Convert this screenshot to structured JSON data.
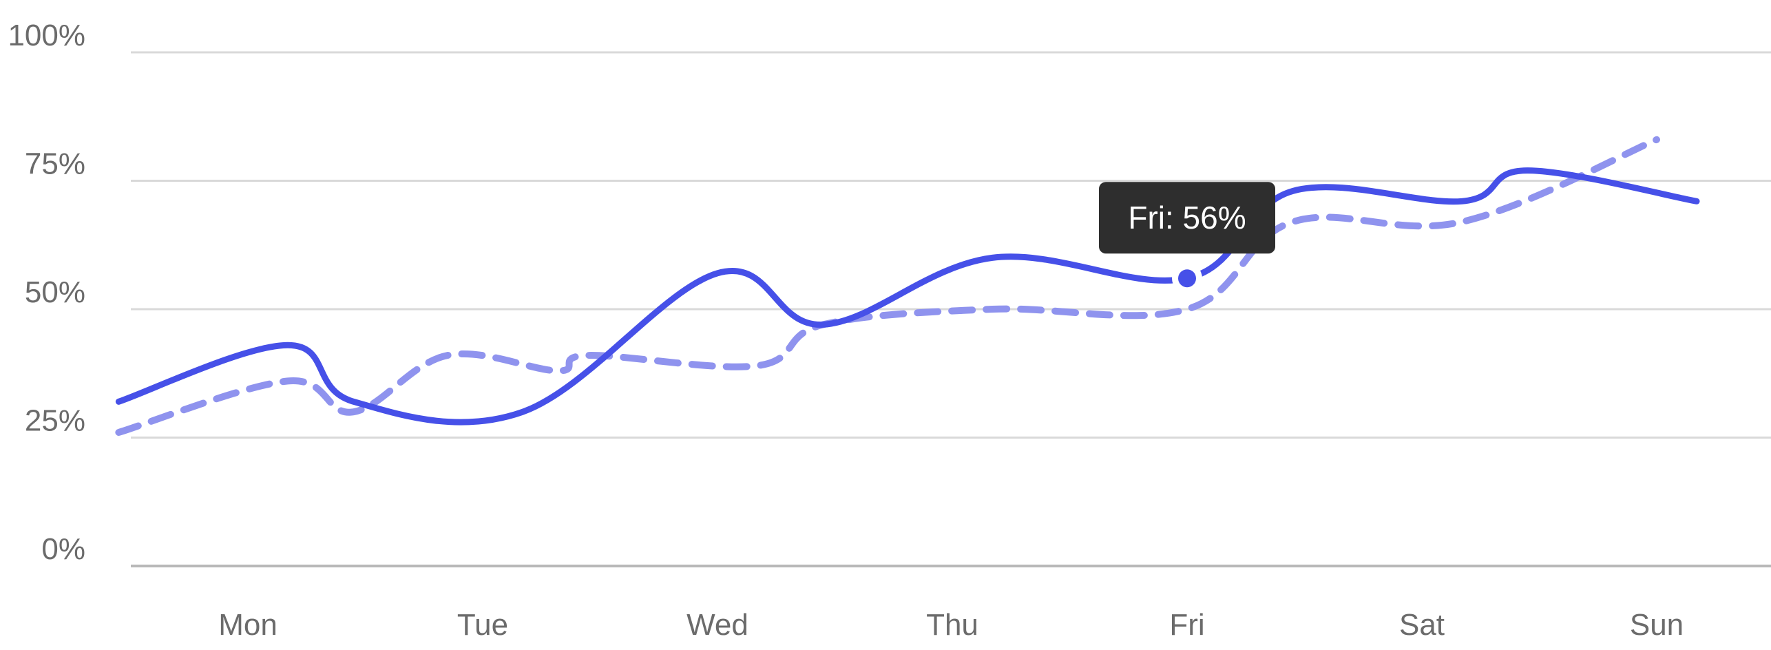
{
  "chart_data": {
    "type": "line",
    "categories": [
      "Mon",
      "Tue",
      "Wed",
      "Thu",
      "Fri",
      "Sat",
      "Sun"
    ],
    "ylim": [
      0,
      100
    ],
    "y_ticks": [
      0,
      25,
      50,
      75,
      100
    ],
    "y_tick_labels": [
      "0%",
      "25%",
      "50%",
      "75%",
      "100%"
    ],
    "grid": true,
    "series": [
      {
        "style": "solid",
        "color": "#4650e8",
        "points": [
          {
            "x": "Mon",
            "y": 32
          },
          {
            "x": "Mon",
            "y": 43
          },
          {
            "x": "Tue",
            "y": 32
          },
          {
            "x": "Tue",
            "y": 30
          },
          {
            "x": "Wed",
            "y": 57
          },
          {
            "x": "Thu",
            "y": 47
          },
          {
            "x": "Thu",
            "y": 60
          },
          {
            "x": "Fri",
            "y": 56
          },
          {
            "x": "Sat",
            "y": 73
          },
          {
            "x": "Sat",
            "y": 71
          },
          {
            "x": "Sun",
            "y": 77
          },
          {
            "x": "Sun",
            "y": 71
          }
        ]
      },
      {
        "style": "dashed",
        "color": "#8f93ee",
        "points": [
          {
            "x": "Mon",
            "y": 26
          },
          {
            "x": "Mon",
            "y": 36
          },
          {
            "x": "Tue",
            "y": 30
          },
          {
            "x": "Tue",
            "y": 41
          },
          {
            "x": "Tue",
            "y": 38
          },
          {
            "x": "Wed",
            "y": 41
          },
          {
            "x": "Wed",
            "y": 39
          },
          {
            "x": "Thu",
            "y": 47
          },
          {
            "x": "Thu",
            "y": 50
          },
          {
            "x": "Fri",
            "y": 50
          },
          {
            "x": "Sat",
            "y": 67
          },
          {
            "x": "Sat",
            "y": 67
          },
          {
            "x": "Sun",
            "y": 83
          }
        ]
      }
    ],
    "tooltip": {
      "text": "Fri: 56%",
      "category": "Fri",
      "value": 56
    }
  }
}
